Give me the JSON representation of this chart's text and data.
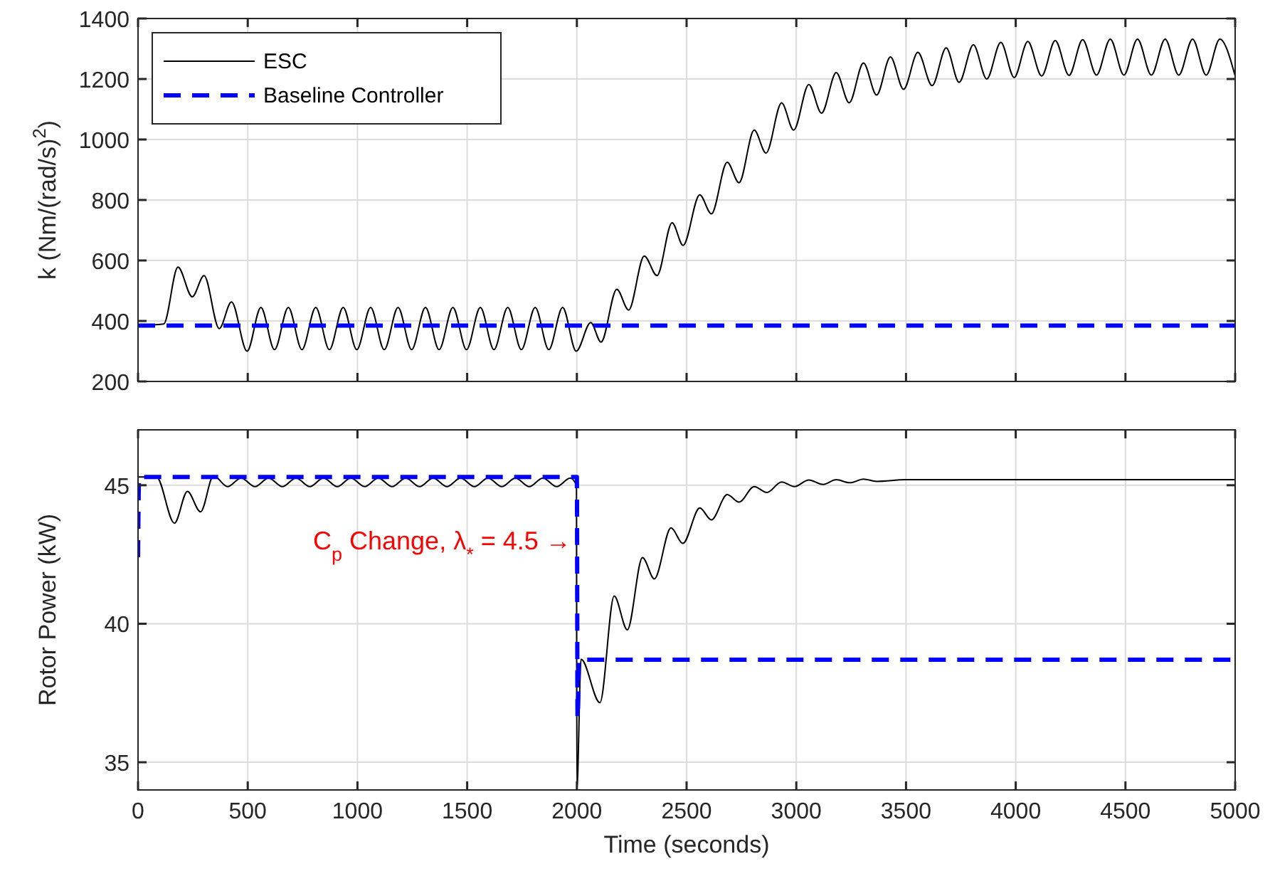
{
  "chart_data": [
    {
      "type": "line",
      "ylabel": "k (Nm/(rad/s)$^{2}$)",
      "xlim": [
        0,
        5000
      ],
      "xticks": [
        0,
        500,
        1000,
        1500,
        2000,
        2500,
        3000,
        3500,
        4000,
        4500,
        5000
      ],
      "ylim": [
        200,
        1400
      ],
      "yticks": [
        200,
        400,
        600,
        800,
        1000,
        1200,
        1400
      ],
      "grid": true,
      "legend": "top left",
      "tick_labels": "y",
      "series": [
        {
          "name": "ESC",
          "color": "#000000",
          "line_style": "solid",
          "x": [
            0,
            117,
            182,
            247,
            301,
            370,
            426,
            497,
            560,
            622,
            685,
            747,
            810,
            872,
            935,
            997,
            1060,
            1122,
            1185,
            1247,
            1310,
            1372,
            1435,
            1497,
            1560,
            1622,
            1685,
            1747,
            1810,
            1872,
            1935,
            1997,
            2063,
            2110,
            2182,
            2236,
            2307,
            2365,
            2434,
            2484,
            2560,
            2613,
            2685,
            2739,
            2808,
            2862,
            2933,
            2988,
            3057,
            3115,
            3182,
            3241,
            3306,
            3366,
            3429,
            3489,
            3554,
            3619,
            3683,
            3742,
            3807,
            3868,
            3932,
            3993,
            4055,
            4118,
            4180,
            4243,
            4305,
            4368,
            4431,
            4493,
            4555,
            4618,
            4681,
            4743,
            4806,
            4868,
            4930,
            5000
          ],
          "values": [
            385,
            390,
            578,
            480,
            550,
            375,
            463,
            300,
            445,
            305,
            445,
            305,
            445,
            305,
            445,
            305,
            445,
            305,
            445,
            305,
            445,
            305,
            445,
            305,
            445,
            305,
            445,
            305,
            445,
            305,
            445,
            300,
            395,
            330,
            505,
            436,
            615,
            550,
            725,
            650,
            817,
            754,
            925,
            857,
            1031,
            955,
            1121,
            1031,
            1182,
            1087,
            1221,
            1121,
            1253,
            1147,
            1273,
            1166,
            1288,
            1178,
            1303,
            1189,
            1313,
            1200,
            1321,
            1205,
            1324,
            1210,
            1327,
            1212,
            1330,
            1213,
            1332,
            1213,
            1332,
            1213,
            1332,
            1213,
            1332,
            1213,
            1332,
            1210
          ]
        },
        {
          "name": "Baseline Controller",
          "color": "#0000ff",
          "line_style": "dashed",
          "x": [
            0,
            5000
          ],
          "values": [
            385,
            385
          ]
        }
      ]
    },
    {
      "type": "line",
      "xlabel": "Time (seconds)",
      "ylabel": "Rotor Power (kW)",
      "xlim": [
        0,
        5000
      ],
      "xticks": [
        0,
        500,
        1000,
        1500,
        2000,
        2500,
        3000,
        3500,
        4000,
        4500,
        5000
      ],
      "ylim": [
        34,
        47
      ],
      "yticks": [
        35,
        40,
        45
      ],
      "grid": true,
      "annotations": [
        {
          "text": "C$_{p}$ Change, λ$_{*}$ = 4.5 →",
          "x": 2000,
          "y": 43
        }
      ],
      "series": [
        {
          "color": "#000000",
          "line_style": "solid",
          "x": [
            0,
            84,
            166,
            225,
            285,
            344,
            408,
            470,
            533,
            595,
            658,
            720,
            783,
            845,
            908,
            970,
            1033,
            1095,
            1158,
            1220,
            1283,
            1345,
            1408,
            1470,
            1533,
            1595,
            1658,
            1720,
            1783,
            1845,
            1908,
            1970,
            1998,
            2000,
            2019,
            2105,
            2170,
            2230,
            2299,
            2353,
            2429,
            2483,
            2560,
            2613,
            2685,
            2739,
            2808,
            2866,
            2933,
            2991,
            3057,
            3122,
            3182,
            3244,
            3306,
            3366,
            3500,
            4000,
            5000
          ],
          "values": [
            45.3,
            45.3,
            43.63,
            44.78,
            44.04,
            45.34,
            44.95,
            45.26,
            44.95,
            45.26,
            44.95,
            45.26,
            44.95,
            45.26,
            44.95,
            45.26,
            44.95,
            45.26,
            44.95,
            45.26,
            44.95,
            45.26,
            44.95,
            45.26,
            44.95,
            45.26,
            44.95,
            45.26,
            44.95,
            45.26,
            44.95,
            45.26,
            45.0,
            34,
            38.72,
            37.15,
            41.0,
            39.78,
            42.39,
            41.62,
            43.46,
            42.9,
            44.18,
            43.75,
            44.66,
            44.39,
            44.95,
            44.74,
            45.12,
            44.95,
            45.19,
            45.03,
            45.2,
            45.09,
            45.22,
            45.14,
            45.2,
            45.2,
            45.2
          ]
        },
        {
          "color": "#0000ff",
          "line_style": "dashed",
          "x": [
            0,
            5,
            2000,
            2003,
            2010,
            5000
          ],
          "values": [
            42.4,
            45.3,
            45.3,
            36.6,
            38.7,
            38.7
          ]
        }
      ]
    }
  ]
}
